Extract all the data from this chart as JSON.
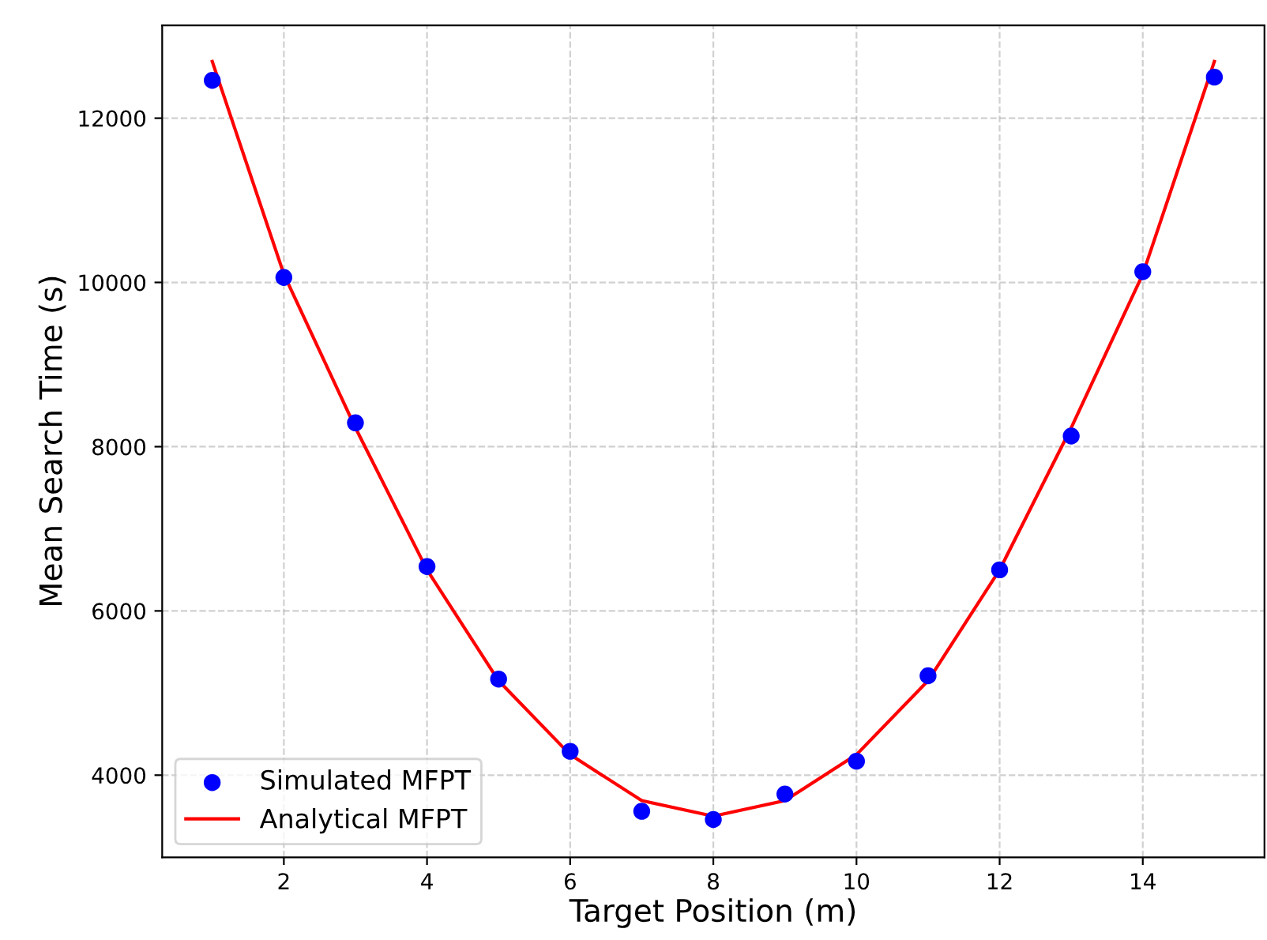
{
  "chart_data": {
    "type": "line",
    "xlabel": "Target Position (m)",
    "ylabel": "Mean Search Time (s)",
    "xlim": [
      0.3,
      15.7
    ],
    "ylim": [
      3000,
      13130
    ],
    "xticks": [
      2,
      4,
      6,
      8,
      10,
      12,
      14
    ],
    "yticks": [
      4000,
      6000,
      8000,
      10000,
      12000
    ],
    "grid": true,
    "legend": "bottom left",
    "series": [
      {
        "name": "Simulated MFPT",
        "type": "scatter",
        "color": "#0000ff",
        "marker": "circle",
        "x": [
          1,
          2,
          3,
          4,
          5,
          6,
          7,
          8,
          9,
          10,
          11,
          12,
          13,
          14,
          15
        ],
        "values": [
          12460,
          10060,
          8290,
          6540,
          5170,
          4290,
          3560,
          3460,
          3770,
          4170,
          5210,
          6500,
          8130,
          10130,
          12500
        ]
      },
      {
        "name": "Analytical MFPT",
        "color": "#ff0000",
        "line_style": "solid",
        "x": [
          1,
          2,
          3,
          4,
          5,
          6,
          7,
          8,
          9,
          10,
          11,
          12,
          13,
          14,
          15
        ],
        "values": [
          12690,
          10100,
          8230,
          6500,
          5150,
          4250,
          3690,
          3500,
          3690,
          4250,
          5150,
          6500,
          8230,
          10100,
          12690
        ]
      }
    ]
  }
}
